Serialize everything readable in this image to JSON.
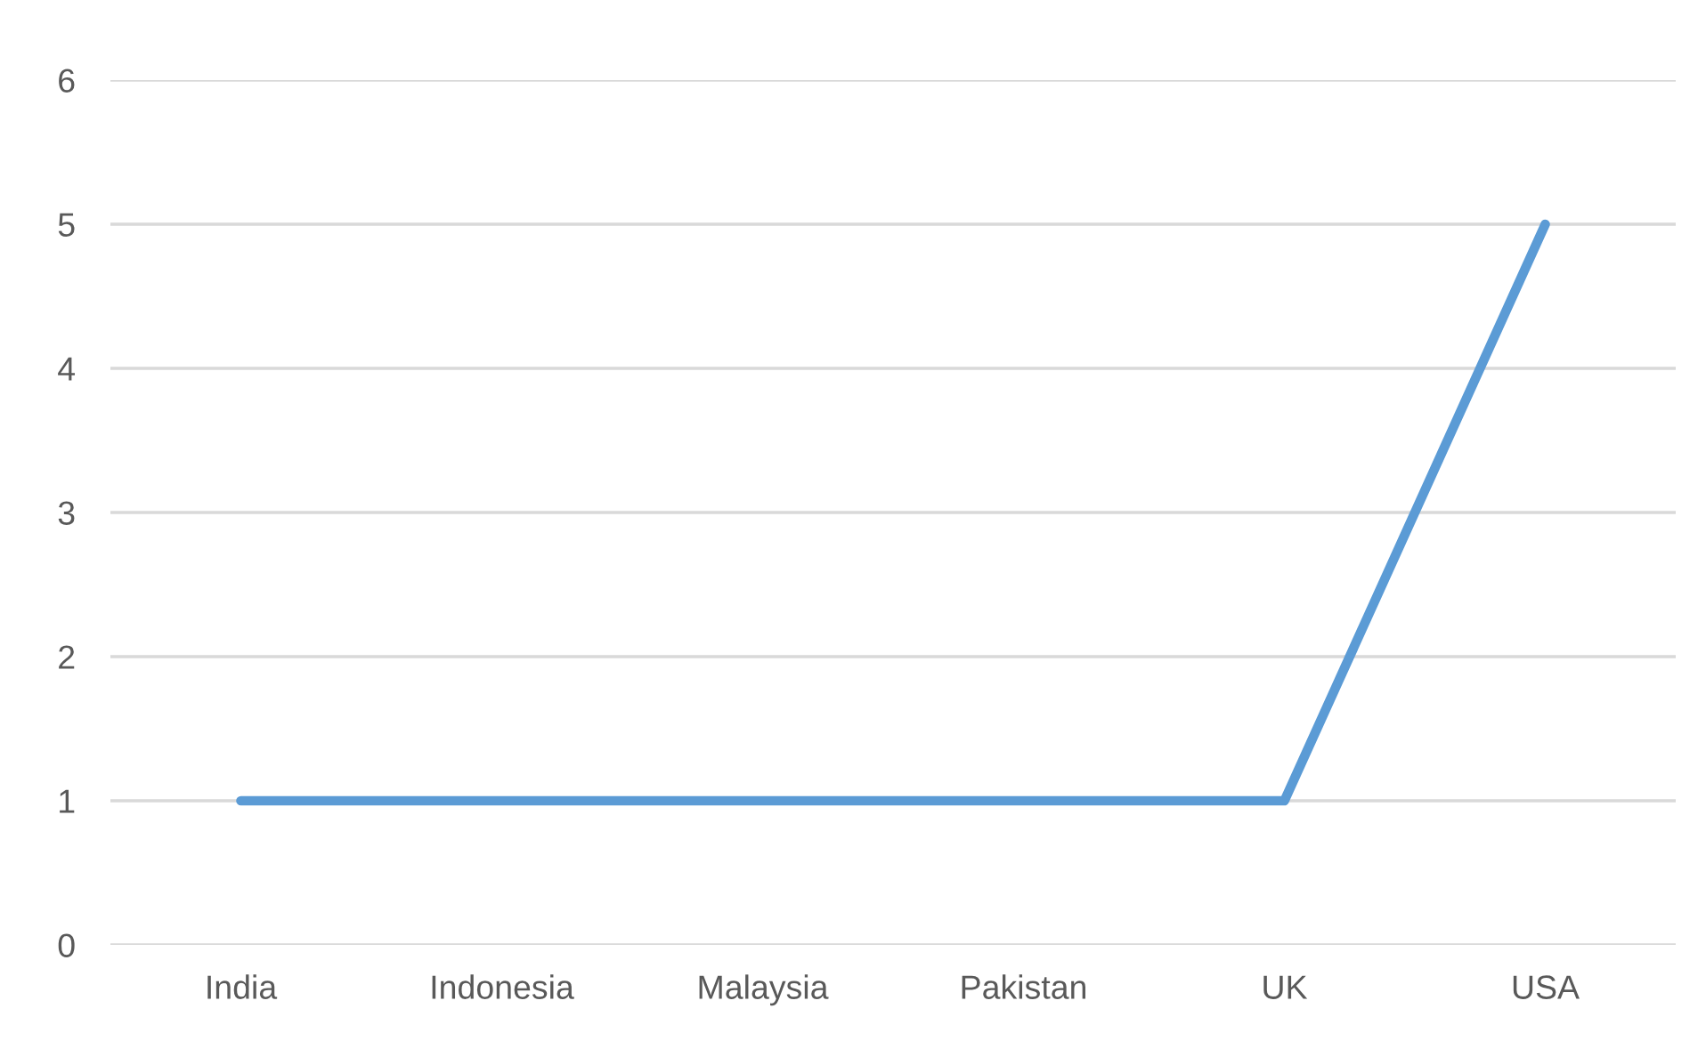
{
  "chart_data": {
    "type": "line",
    "categories": [
      "India",
      "Indonesia",
      "Malaysia",
      "Pakistan",
      "UK",
      "USA"
    ],
    "series": [
      {
        "color": "#5b9bd5",
        "values": [
          1,
          1,
          1,
          1,
          1,
          5
        ]
      }
    ],
    "ylim": [
      0,
      6
    ],
    "yticks": [
      0,
      1,
      2,
      3,
      4,
      5,
      6
    ],
    "grid": "y",
    "marker": "none",
    "line_style": "solid"
  }
}
